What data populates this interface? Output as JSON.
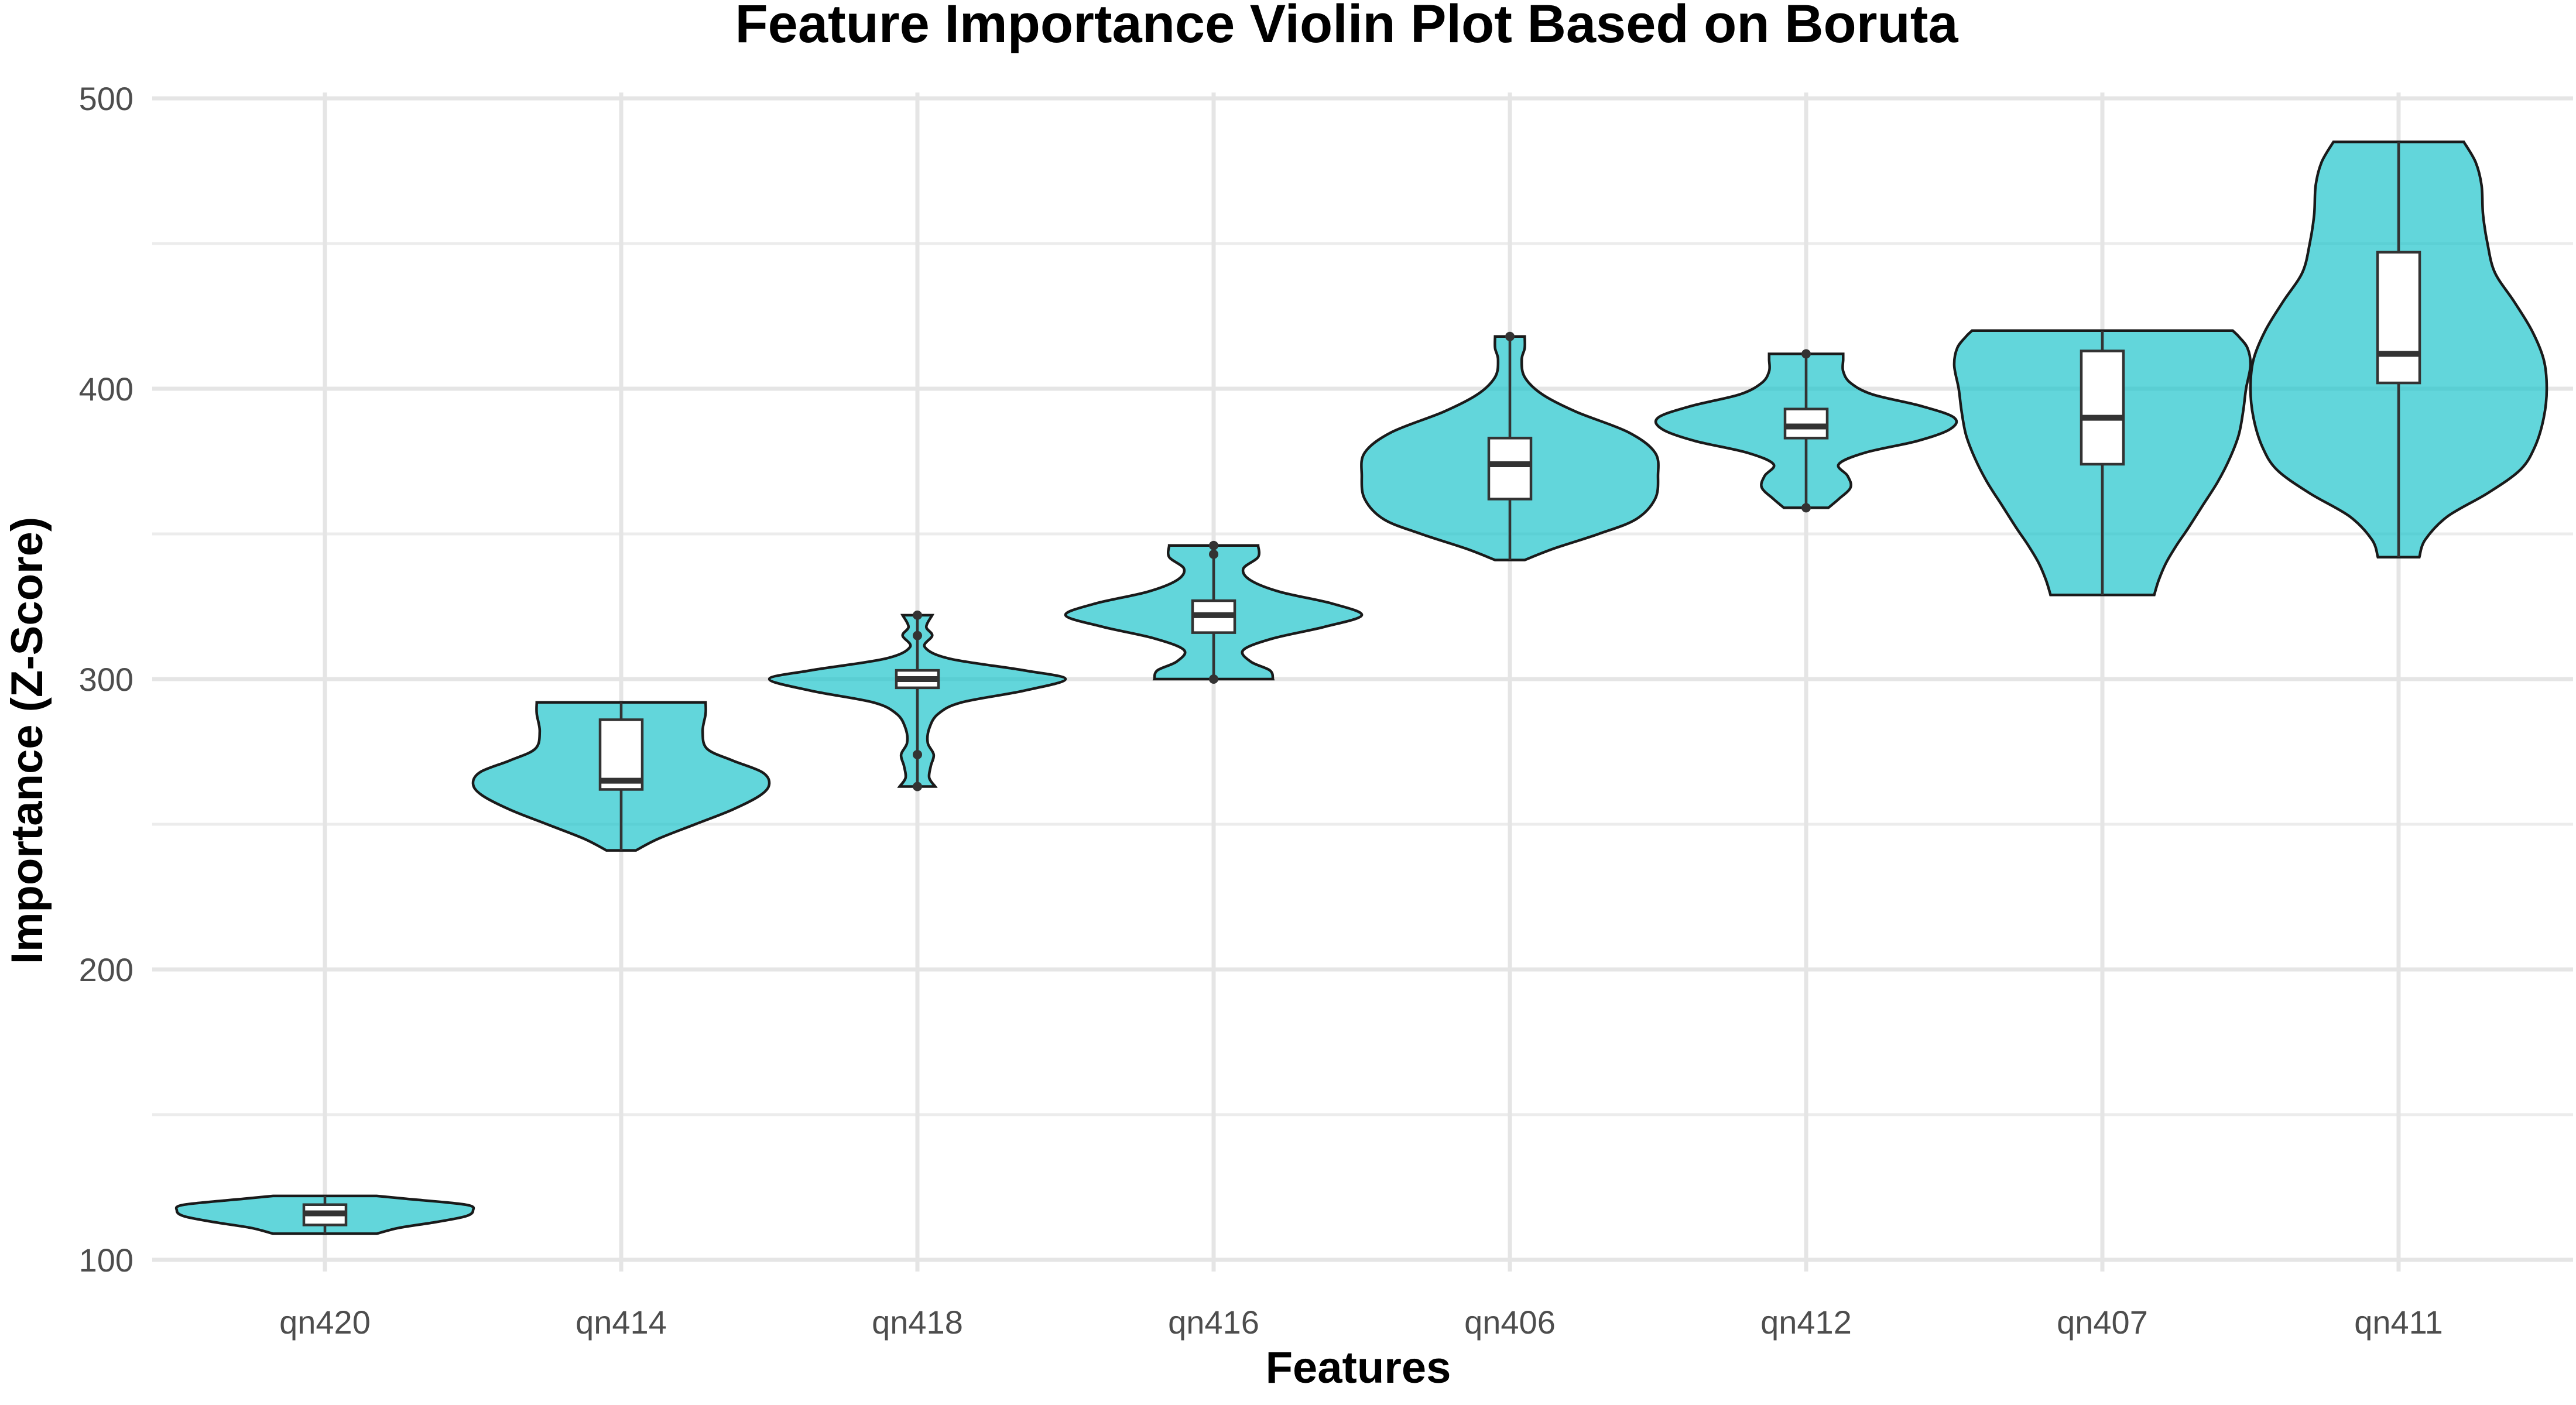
{
  "chart_data": {
    "type": "violin",
    "title": "Feature Importance Violin Plot Based on Boruta",
    "xlabel": "Features",
    "ylabel": "Importance (Z-Score)",
    "ylim": [
      100,
      500
    ],
    "yticks": [
      100,
      200,
      300,
      400,
      500
    ],
    "grid": true,
    "legend": "none",
    "colors": {
      "violin_fill": "#20c5cc",
      "outline": "#1a1a1a",
      "box": "#ffffff"
    },
    "categories": [
      "qn420",
      "qn414",
      "qn418",
      "qn416",
      "qn406",
      "qn412",
      "qn407",
      "qn411"
    ],
    "series": [
      {
        "category": "qn420",
        "min": 109,
        "q1": 112,
        "median": 116,
        "q3": 119,
        "max": 122,
        "outliers": [],
        "density": [
          [
            109,
            0.35
          ],
          [
            111,
            0.5
          ],
          [
            113,
            0.75
          ],
          [
            115,
            0.95
          ],
          [
            117,
            1.0
          ],
          [
            119,
            0.95
          ],
          [
            121,
            0.55
          ],
          [
            122,
            0.35
          ]
        ]
      },
      {
        "category": "qn414",
        "min": 241,
        "q1": 262,
        "median": 265,
        "q3": 286,
        "max": 292,
        "outliers": [],
        "density": [
          [
            241,
            0.1
          ],
          [
            245,
            0.25
          ],
          [
            250,
            0.5
          ],
          [
            255,
            0.75
          ],
          [
            260,
            0.94
          ],
          [
            264,
            1.0
          ],
          [
            268,
            0.95
          ],
          [
            272,
            0.75
          ],
          [
            276,
            0.58
          ],
          [
            282,
            0.55
          ],
          [
            288,
            0.57
          ],
          [
            292,
            0.57
          ]
        ]
      },
      {
        "category": "qn418",
        "min": 263,
        "q1": 297,
        "median": 300,
        "q3": 303,
        "max": 322,
        "outliers": [
          263,
          274,
          315,
          322
        ],
        "density": [
          [
            263,
            0.12
          ],
          [
            266,
            0.08
          ],
          [
            270,
            0.09
          ],
          [
            274,
            0.11
          ],
          [
            278,
            0.07
          ],
          [
            283,
            0.08
          ],
          [
            288,
            0.14
          ],
          [
            292,
            0.3
          ],
          [
            296,
            0.72
          ],
          [
            300,
            1.0
          ],
          [
            303,
            0.72
          ],
          [
            307,
            0.22
          ],
          [
            311,
            0.05
          ],
          [
            315,
            0.1
          ],
          [
            318,
            0.06
          ],
          [
            322,
            0.1
          ]
        ]
      },
      {
        "category": "qn416",
        "min": 300,
        "q1": 316,
        "median": 322,
        "q3": 327,
        "max": 346,
        "outliers": [
          300,
          343,
          346
        ],
        "density": [
          [
            300,
            0.4
          ],
          [
            303,
            0.38
          ],
          [
            306,
            0.25
          ],
          [
            310,
            0.2
          ],
          [
            314,
            0.4
          ],
          [
            318,
            0.75
          ],
          [
            322,
            1.0
          ],
          [
            326,
            0.8
          ],
          [
            330,
            0.45
          ],
          [
            334,
            0.25
          ],
          [
            338,
            0.2
          ],
          [
            342,
            0.3
          ],
          [
            346,
            0.3
          ]
        ]
      },
      {
        "category": "qn406",
        "min": 341,
        "q1": 362,
        "median": 374,
        "q3": 383,
        "max": 418,
        "outliers": [
          418
        ],
        "density": [
          [
            341,
            0.1
          ],
          [
            345,
            0.3
          ],
          [
            350,
            0.6
          ],
          [
            355,
            0.85
          ],
          [
            362,
            0.98
          ],
          [
            370,
            1.0
          ],
          [
            378,
            0.98
          ],
          [
            385,
            0.8
          ],
          [
            392,
            0.45
          ],
          [
            398,
            0.22
          ],
          [
            404,
            0.1
          ],
          [
            410,
            0.08
          ],
          [
            414,
            0.1
          ],
          [
            418,
            0.1
          ]
        ]
      },
      {
        "category": "qn412",
        "min": 359,
        "q1": 383,
        "median": 387,
        "q3": 393,
        "max": 412,
        "outliers": [
          359,
          412
        ],
        "density": [
          [
            359,
            0.15
          ],
          [
            362,
            0.22
          ],
          [
            366,
            0.3
          ],
          [
            370,
            0.28
          ],
          [
            374,
            0.22
          ],
          [
            378,
            0.4
          ],
          [
            382,
            0.75
          ],
          [
            386,
            0.97
          ],
          [
            390,
            1.0
          ],
          [
            394,
            0.78
          ],
          [
            398,
            0.45
          ],
          [
            402,
            0.3
          ],
          [
            406,
            0.25
          ],
          [
            410,
            0.25
          ],
          [
            412,
            0.25
          ]
        ]
      },
      {
        "category": "qn407",
        "min": 329,
        "q1": 374,
        "median": 390,
        "q3": 413,
        "max": 420,
        "outliers": [],
        "density": [
          [
            329,
            0.35
          ],
          [
            334,
            0.38
          ],
          [
            340,
            0.43
          ],
          [
            346,
            0.5
          ],
          [
            352,
            0.58
          ],
          [
            360,
            0.68
          ],
          [
            368,
            0.78
          ],
          [
            376,
            0.86
          ],
          [
            384,
            0.92
          ],
          [
            392,
            0.95
          ],
          [
            400,
            0.97
          ],
          [
            408,
            1.0
          ],
          [
            414,
            0.98
          ],
          [
            418,
            0.92
          ],
          [
            420,
            0.88
          ]
        ]
      },
      {
        "category": "qn411",
        "min": 342,
        "q1": 402,
        "median": 412,
        "q3": 447,
        "max": 485,
        "outliers": [],
        "density": [
          [
            342,
            0.14
          ],
          [
            348,
            0.18
          ],
          [
            356,
            0.33
          ],
          [
            364,
            0.6
          ],
          [
            372,
            0.82
          ],
          [
            380,
            0.92
          ],
          [
            390,
            0.98
          ],
          [
            400,
            1.0
          ],
          [
            410,
            0.98
          ],
          [
            420,
            0.9
          ],
          [
            430,
            0.78
          ],
          [
            440,
            0.65
          ],
          [
            450,
            0.6
          ],
          [
            460,
            0.57
          ],
          [
            470,
            0.56
          ],
          [
            478,
            0.52
          ],
          [
            485,
            0.44
          ]
        ]
      }
    ]
  }
}
